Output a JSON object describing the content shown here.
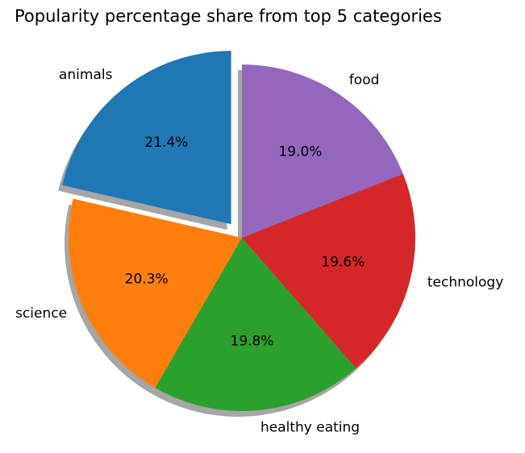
{
  "chart_data": {
    "type": "pie",
    "title": "Popularity percentage share from top 5 categories",
    "labels": [
      "animals",
      "science",
      "healthy eating",
      "technology",
      "food"
    ],
    "values": [
      21.4,
      20.3,
      19.8,
      19.6,
      19.0
    ],
    "percent_labels": [
      "21.4%",
      "20.3%",
      "19.8%",
      "19.6%",
      "19.0%"
    ],
    "colors": [
      "#1f77b4",
      "#ff7f0e",
      "#2ca02c",
      "#d62728",
      "#9467bd"
    ],
    "explode": [
      0.1,
      0,
      0,
      0,
      0
    ],
    "start_angle_deg": 90,
    "direction": "counterclockwise",
    "shadow": true
  }
}
